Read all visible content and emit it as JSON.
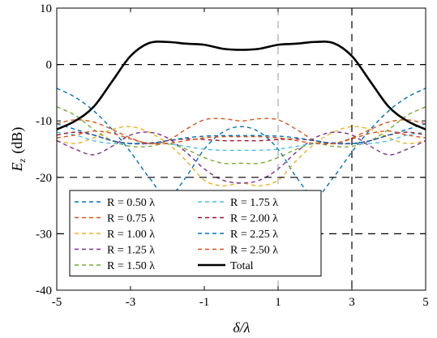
{
  "chart_data": {
    "type": "line",
    "xlabel": "δ/λ",
    "ylabel": "E_z (dB)",
    "ylabel_main": "E",
    "ylabel_sub": "z",
    "ylabel_unit": "(dB)",
    "xlim": [
      -5,
      5
    ],
    "ylim": [
      -40,
      10
    ],
    "xticks": [
      -5,
      -3,
      -1,
      1,
      3,
      5
    ],
    "yticks": [
      -40,
      -30,
      -20,
      -10,
      0,
      10
    ],
    "xtick_labels": [
      "-5",
      "-3",
      "-1",
      "1",
      "3",
      "5"
    ],
    "ytick_labels": [
      "-40",
      "-30",
      "-20",
      "-10",
      "0",
      "10"
    ],
    "grid": false,
    "legend_position": "bottom-left",
    "reference_lines": [
      {
        "orientation": "horizontal",
        "value": 0,
        "style": "dashed",
        "color": "#000000"
      },
      {
        "orientation": "horizontal",
        "value": -20,
        "style": "dashed",
        "color": "#000000"
      },
      {
        "orientation": "horizontal",
        "value": -30,
        "style": "dashed",
        "color": "#000000"
      },
      {
        "orientation": "vertical",
        "value": 3,
        "style": "dashed",
        "color": "#000000"
      },
      {
        "orientation": "vertical",
        "value": 1,
        "style": "dashed",
        "color": "#999999"
      }
    ],
    "x": [
      -5,
      -4.5,
      -4,
      -3.5,
      -3,
      -2.5,
      -2,
      -1.5,
      -1,
      -0.5,
      0,
      0.5,
      1,
      1.5,
      2,
      2.5,
      3,
      3.5,
      4,
      4.5,
      5
    ],
    "series": [
      {
        "name": "R = 0.50 λ",
        "color": "#0072BD",
        "style": "dashed",
        "values": [
          -4.2,
          -5.8,
          -8.2,
          -11.5,
          -15.5,
          -20,
          -23.5,
          -20,
          -15,
          -12,
          -11,
          -12,
          -15,
          -20,
          -23.5,
          -20,
          -15.5,
          -11.5,
          -8.2,
          -5.8,
          -4.2
        ]
      },
      {
        "name": "R = 0.75 λ",
        "color": "#D95319",
        "style": "dashed",
        "values": [
          -10.5,
          -9.8,
          -10.2,
          -11.5,
          -13,
          -14,
          -13.5,
          -11.5,
          -9.8,
          -9.6,
          -10,
          -9.6,
          -9.8,
          -11.5,
          -13.5,
          -14,
          -13,
          -11.5,
          -10.2,
          -9.8,
          -10.5
        ]
      },
      {
        "name": "R = 1.00 λ",
        "color": "#EDB120",
        "style": "dashed",
        "values": [
          -13.5,
          -14,
          -13,
          -11.5,
          -11,
          -12,
          -14,
          -17,
          -20.5,
          -21.5,
          -21,
          -21.5,
          -20.5,
          -17,
          -14,
          -12,
          -11,
          -11.5,
          -13,
          -14,
          -13.5
        ]
      },
      {
        "name": "R = 1.25 λ",
        "color": "#7E2F8E",
        "style": "dashed",
        "values": [
          -13.5,
          -15,
          -16,
          -14.5,
          -12.5,
          -12,
          -13,
          -15.5,
          -18.5,
          -20.5,
          -21,
          -20.5,
          -18.5,
          -15.5,
          -13,
          -12,
          -12.5,
          -14.5,
          -16,
          -15,
          -13.5
        ]
      },
      {
        "name": "R = 1.50 λ",
        "color": "#77AC30",
        "style": "dashed",
        "values": [
          -7.5,
          -9,
          -11.5,
          -13.5,
          -14.5,
          -14.5,
          -14,
          -15,
          -16.5,
          -17.5,
          -17.5,
          -17.5,
          -16.5,
          -15,
          -14,
          -14.5,
          -14.5,
          -13.5,
          -11.5,
          -9,
          -7.5
        ]
      },
      {
        "name": "R = 1.75 λ",
        "color": "#4DBEEE",
        "style": "dashed",
        "values": [
          -12,
          -12.5,
          -13.5,
          -14,
          -14,
          -13.8,
          -14,
          -14.5,
          -15,
          -15.2,
          -15.2,
          -15.2,
          -15,
          -14.5,
          -14,
          -13.8,
          -14,
          -14,
          -13.5,
          -12.5,
          -12
        ]
      },
      {
        "name": "R = 2.00 λ",
        "color": "#A2142F",
        "style": "dashed",
        "values": [
          -12.5,
          -12,
          -12.5,
          -13.5,
          -14,
          -14,
          -13.5,
          -13.2,
          -13.3,
          -13.5,
          -13.5,
          -13.5,
          -13.3,
          -13.2,
          -13.5,
          -14,
          -14,
          -13.5,
          -12.5,
          -12,
          -12.5
        ]
      },
      {
        "name": "R = 2.25 λ",
        "color": "#0072BD",
        "style": "dashed",
        "values": [
          -10.5,
          -11.5,
          -12.5,
          -13.5,
          -14,
          -14,
          -13.5,
          -13,
          -12.7,
          -12.6,
          -12.6,
          -12.6,
          -12.7,
          -13,
          -13.5,
          -14,
          -14,
          -13.5,
          -12.5,
          -11.5,
          -10.5
        ]
      },
      {
        "name": "R = 2.50 λ",
        "color": "#D95319",
        "style": "dashed",
        "values": [
          -13,
          -12.5,
          -11.8,
          -12.2,
          -13.2,
          -14,
          -14,
          -13.5,
          -13,
          -12.8,
          -12.8,
          -12.8,
          -13,
          -13.5,
          -14,
          -14,
          -13.2,
          -12.2,
          -11.8,
          -12.5,
          -13
        ]
      },
      {
        "name": "Total",
        "color": "#000000",
        "style": "solid",
        "values": [
          -11.5,
          -10,
          -7.5,
          -3,
          1.5,
          3.8,
          4,
          3.7,
          3.5,
          2.8,
          2.6,
          2.8,
          3.5,
          3.7,
          4,
          3.8,
          1.5,
          -3,
          -7.5,
          -10,
          -11.5
        ]
      }
    ]
  }
}
